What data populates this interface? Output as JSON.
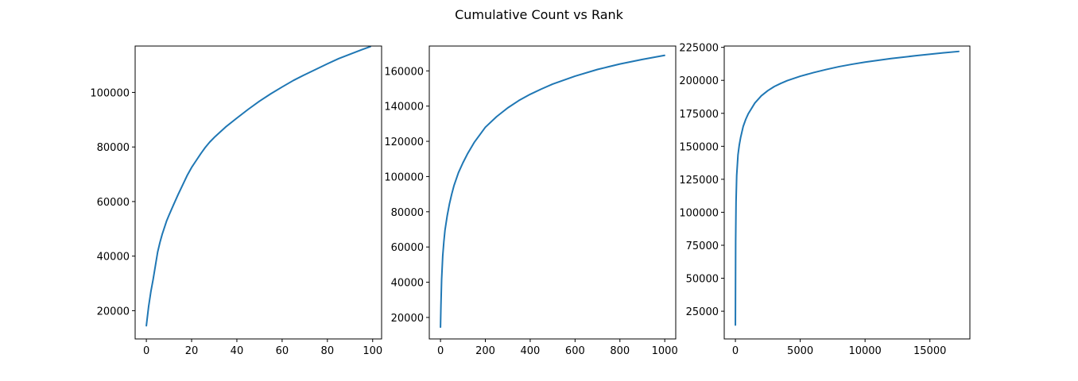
{
  "figure": {
    "title": "Cumulative Count vs Rank",
    "line_color": "#1f77b4"
  },
  "chart_data": [
    {
      "type": "line",
      "xlim": [
        -4.95,
        103.95
      ],
      "ylim": [
        9650,
        117000
      ],
      "xticks": [
        0,
        20,
        40,
        60,
        80,
        100
      ],
      "yticks": [
        20000,
        40000,
        60000,
        80000,
        100000
      ],
      "xtick_labels": [
        "0",
        "20",
        "40",
        "60",
        "80",
        "100"
      ],
      "ytick_labels": [
        "20000",
        "40000",
        "60000",
        "80000",
        "100000"
      ],
      "grid": false,
      "series": [
        {
          "x": [
            0,
            1,
            2,
            3,
            4,
            5,
            6,
            7,
            8,
            9,
            10,
            12,
            14,
            16,
            18,
            20,
            22,
            24,
            26,
            28,
            30,
            35,
            40,
            45,
            50,
            55,
            60,
            65,
            70,
            75,
            80,
            85,
            90,
            95,
            99
          ],
          "y": [
            14500,
            21500,
            27000,
            31500,
            36500,
            41500,
            45000,
            48000,
            50500,
            53000,
            55000,
            58800,
            62500,
            66000,
            69500,
            72500,
            75000,
            77500,
            79800,
            81800,
            83500,
            87300,
            90600,
            93800,
            96800,
            99500,
            102000,
            104400,
            106500,
            108500,
            110500,
            112400,
            114000,
            115600,
            116800
          ]
        }
      ]
    },
    {
      "type": "line",
      "xlim": [
        -49.95,
        1048.95
      ],
      "ylim": [
        7800,
        174100
      ],
      "xticks": [
        0,
        200,
        400,
        600,
        800,
        1000
      ],
      "yticks": [
        20000,
        40000,
        60000,
        80000,
        100000,
        120000,
        140000,
        160000
      ],
      "xtick_labels": [
        "0",
        "200",
        "400",
        "600",
        "800",
        "1000"
      ],
      "ytick_labels": [
        "20000",
        "40000",
        "60000",
        "80000",
        "100000",
        "120000",
        "140000",
        "160000"
      ],
      "grid": false,
      "series": [
        {
          "x": [
            0,
            2,
            5,
            10,
            15,
            20,
            30,
            40,
            50,
            60,
            80,
            100,
            120,
            150,
            200,
            250,
            300,
            350,
            400,
            450,
            500,
            600,
            700,
            800,
            900,
            999
          ],
          "y": [
            14500,
            27000,
            41500,
            55000,
            63000,
            69500,
            77800,
            84500,
            90000,
            94800,
            102200,
            107800,
            112800,
            119300,
            128000,
            134000,
            139000,
            143200,
            146700,
            149700,
            152500,
            157000,
            160800,
            163900,
            166500,
            168800
          ]
        }
      ]
    },
    {
      "type": "line",
      "xlim": [
        -861.15,
        18084.15
      ],
      "ylim": [
        4000,
        226000
      ],
      "xticks": [
        0,
        5000,
        10000,
        15000
      ],
      "yticks": [
        25000,
        50000,
        75000,
        100000,
        125000,
        150000,
        175000,
        200000,
        225000
      ],
      "xtick_labels": [
        "0",
        "5000",
        "10000",
        "15000"
      ],
      "ytick_labels": [
        "25000",
        "50000",
        "75000",
        "100000",
        "125000",
        "150000",
        "175000",
        "200000",
        "225000"
      ],
      "grid": false,
      "series": [
        {
          "x": [
            0,
            20,
            50,
            100,
            200,
            300,
            400,
            600,
            800,
            1000,
            1500,
            2000,
            2500,
            3000,
            3500,
            4000,
            5000,
            6000,
            7000,
            8000,
            9000,
            10000,
            12000,
            14000,
            16000,
            17222
          ],
          "y": [
            14500,
            77800,
            107800,
            128000,
            143500,
            151000,
            156500,
            165000,
            170500,
            174800,
            182800,
            188300,
            192200,
            195300,
            197700,
            199800,
            203100,
            205800,
            208200,
            210400,
            212200,
            213800,
            216500,
            218800,
            220800,
            221900
          ]
        }
      ]
    }
  ]
}
